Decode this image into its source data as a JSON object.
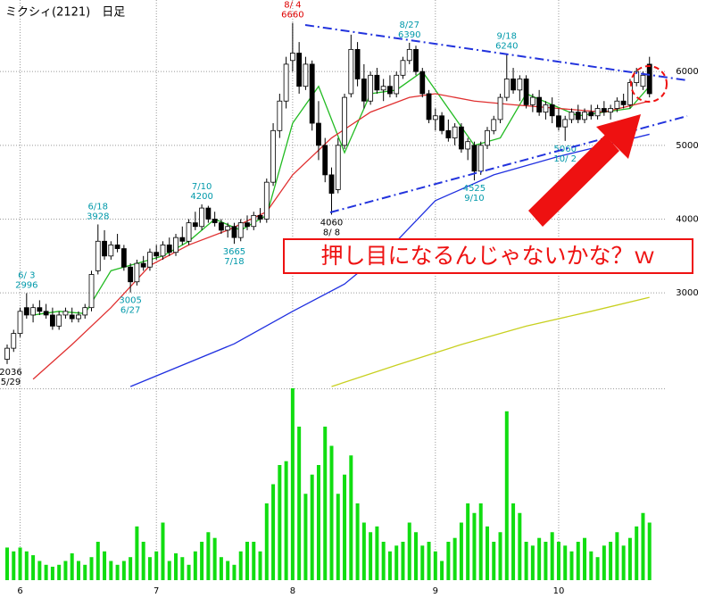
{
  "chart_data": {
    "type": "candlestick",
    "title": "ミクシィ(2121)　日足",
    "ylim": [
      1700,
      6970
    ],
    "yticks": [
      6000,
      5000,
      4000,
      3000
    ],
    "grid": true,
    "vlim": [
      0,
      100
    ],
    "xticks": [
      {
        "value": 2,
        "label": "6"
      },
      {
        "value": 23,
        "label": "7"
      },
      {
        "value": 44,
        "label": "8"
      },
      {
        "value": 66,
        "label": "9"
      },
      {
        "value": 85,
        "label": "10"
      }
    ],
    "ohlc": [
      [
        2100,
        2300,
        2036,
        2250
      ],
      [
        2250,
        2500,
        2200,
        2450
      ],
      [
        2450,
        2800,
        2400,
        2750
      ],
      [
        2800,
        2996,
        2650,
        2700
      ],
      [
        2700,
        2850,
        2600,
        2800
      ],
      [
        2800,
        2900,
        2700,
        2750
      ],
      [
        2750,
        2850,
        2650,
        2700
      ],
      [
        2700,
        2800,
        2500,
        2550
      ],
      [
        2550,
        2750,
        2500,
        2700
      ],
      [
        2700,
        2800,
        2650,
        2750
      ],
      [
        2700,
        2800,
        2600,
        2650
      ],
      [
        2650,
        2750,
        2600,
        2700
      ],
      [
        2700,
        2850,
        2650,
        2800
      ],
      [
        2800,
        3300,
        2750,
        3250
      ],
      [
        3300,
        3928,
        3250,
        3700
      ],
      [
        3700,
        3850,
        3450,
        3500
      ],
      [
        3500,
        3700,
        3450,
        3650
      ],
      [
        3650,
        3800,
        3550,
        3600
      ],
      [
        3600,
        3650,
        3300,
        3350
      ],
      [
        3350,
        3400,
        3005,
        3150
      ],
      [
        3150,
        3450,
        3100,
        3400
      ],
      [
        3400,
        3500,
        3300,
        3350
      ],
      [
        3350,
        3600,
        3300,
        3550
      ],
      [
        3550,
        3650,
        3450,
        3500
      ],
      [
        3500,
        3700,
        3450,
        3650
      ],
      [
        3650,
        3750,
        3500,
        3550
      ],
      [
        3550,
        3800,
        3500,
        3750
      ],
      [
        3750,
        3900,
        3650,
        3700
      ],
      [
        3700,
        4000,
        3650,
        3950
      ],
      [
        3950,
        4100,
        3850,
        3900
      ],
      [
        3900,
        4200,
        3850,
        4150
      ],
      [
        4150,
        4180,
        3950,
        4000
      ],
      [
        4000,
        4100,
        3900,
        3950
      ],
      [
        3950,
        4000,
        3800,
        3850
      ],
      [
        3850,
        3950,
        3750,
        3900
      ],
      [
        3900,
        3950,
        3665,
        3750
      ],
      [
        3750,
        4000,
        3700,
        3950
      ],
      [
        3950,
        4050,
        3850,
        3900
      ],
      [
        3900,
        4100,
        3850,
        4050
      ],
      [
        4050,
        4150,
        3950,
        4000
      ],
      [
        4000,
        4550,
        3950,
        4500
      ],
      [
        4500,
        5300,
        4450,
        5200
      ],
      [
        5200,
        5700,
        5100,
        5600
      ],
      [
        5600,
        6200,
        5500,
        6100
      ],
      [
        6150,
        6660,
        6000,
        6250
      ],
      [
        6250,
        6400,
        5700,
        5800
      ],
      [
        5800,
        6200,
        5750,
        6100
      ],
      [
        6100,
        6150,
        5200,
        5300
      ],
      [
        5300,
        5600,
        4800,
        5000
      ],
      [
        5000,
        5100,
        4500,
        4600
      ],
      [
        4600,
        4700,
        4060,
        4350
      ],
      [
        4400,
        5100,
        4350,
        5000
      ],
      [
        5000,
        5700,
        4950,
        5650
      ],
      [
        5700,
        6500,
        5650,
        6300
      ],
      [
        6300,
        6400,
        5800,
        5900
      ],
      [
        5900,
        6100,
        5500,
        5600
      ],
      [
        5600,
        6000,
        5550,
        5950
      ],
      [
        5950,
        6050,
        5700,
        5750
      ],
      [
        5750,
        5900,
        5600,
        5800
      ],
      [
        5800,
        5950,
        5650,
        5700
      ],
      [
        5700,
        6000,
        5650,
        5950
      ],
      [
        5950,
        6200,
        5900,
        6150
      ],
      [
        6150,
        6390,
        6100,
        6300
      ],
      [
        6300,
        6350,
        5950,
        6000
      ],
      [
        6000,
        6050,
        5650,
        5700
      ],
      [
        5700,
        5750,
        5300,
        5350
      ],
      [
        5350,
        5500,
        5200,
        5400
      ],
      [
        5400,
        5450,
        5150,
        5200
      ],
      [
        5200,
        5350,
        5050,
        5100
      ],
      [
        5100,
        5300,
        5000,
        5250
      ],
      [
        5250,
        5300,
        4900,
        4950
      ],
      [
        4950,
        5100,
        4800,
        5050
      ],
      [
        5000,
        5050,
        4525,
        4650
      ],
      [
        4650,
        5050,
        4600,
        5000
      ],
      [
        5000,
        5250,
        4950,
        5200
      ],
      [
        5200,
        5400,
        5150,
        5350
      ],
      [
        5350,
        5700,
        5300,
        5650
      ],
      [
        5650,
        6240,
        5600,
        5900
      ],
      [
        5900,
        6050,
        5700,
        5750
      ],
      [
        5750,
        5950,
        5600,
        5900
      ],
      [
        5900,
        5950,
        5500,
        5550
      ],
      [
        5550,
        5700,
        5450,
        5650
      ],
      [
        5650,
        5750,
        5400,
        5450
      ],
      [
        5450,
        5600,
        5350,
        5550
      ],
      [
        5550,
        5650,
        5300,
        5400
      ],
      [
        5400,
        5500,
        5200,
        5250
      ],
      [
        5250,
        5400,
        5060,
        5350
      ],
      [
        5350,
        5500,
        5300,
        5450
      ],
      [
        5450,
        5550,
        5300,
        5350
      ],
      [
        5350,
        5500,
        5300,
        5450
      ],
      [
        5450,
        5550,
        5350,
        5400
      ],
      [
        5400,
        5550,
        5350,
        5500
      ],
      [
        5500,
        5600,
        5400,
        5450
      ],
      [
        5450,
        5550,
        5350,
        5500
      ],
      [
        5500,
        5650,
        5450,
        5600
      ],
      [
        5600,
        5700,
        5500,
        5550
      ],
      [
        5550,
        5900,
        5500,
        5850
      ],
      [
        5850,
        6050,
        5800,
        6000
      ],
      [
        5800,
        6000,
        5750,
        5950
      ],
      [
        6100,
        6200,
        5650,
        5700
      ]
    ],
    "volume": [
      17,
      15,
      17,
      15,
      13,
      10,
      8,
      7,
      8,
      10,
      14,
      10,
      8,
      12,
      20,
      15,
      10,
      8,
      10,
      12,
      28,
      20,
      12,
      15,
      30,
      10,
      14,
      12,
      8,
      15,
      20,
      25,
      22,
      12,
      10,
      8,
      15,
      20,
      20,
      15,
      40,
      50,
      60,
      62,
      100,
      80,
      45,
      55,
      60,
      80,
      70,
      45,
      55,
      65,
      40,
      30,
      25,
      28,
      20,
      15,
      18,
      20,
      30,
      25,
      18,
      20,
      15,
      10,
      20,
      22,
      30,
      40,
      35,
      40,
      28,
      20,
      25,
      88,
      40,
      35,
      20,
      18,
      22,
      20,
      25,
      20,
      18,
      15,
      20,
      22,
      15,
      12,
      18,
      20,
      25,
      18,
      22,
      28,
      35,
      30
    ],
    "volume_color": "#11dd11",
    "moving_averages": [
      {
        "color": "#22bb22",
        "x": [
          4,
          8,
          12,
          16,
          20,
          24,
          28,
          32,
          36,
          40,
          44,
          48,
          52,
          56,
          60,
          64,
          68,
          72,
          76,
          80,
          84,
          88,
          92,
          96,
          99
        ],
        "values": [
          2700,
          2750,
          2720,
          3300,
          3400,
          3500,
          3700,
          4000,
          3850,
          4050,
          5300,
          5800,
          4900,
          5700,
          5750,
          6000,
          5500,
          5000,
          5100,
          5700,
          5550,
          5400,
          5450,
          5500,
          5800
        ]
      },
      {
        "color": "#e03030",
        "x": [
          4,
          10,
          16,
          22,
          28,
          34,
          40,
          44,
          50,
          56,
          62,
          66,
          72,
          78,
          85,
          92,
          99
        ],
        "values": [
          1830,
          2300,
          2800,
          3370,
          3650,
          3850,
          4100,
          4600,
          5100,
          5450,
          5650,
          5700,
          5600,
          5550,
          5500,
          5450,
          5600
        ]
      },
      {
        "color": "#2030e0",
        "x": [
          19,
          35,
          44,
          52,
          60,
          66,
          75,
          85,
          92,
          99
        ],
        "values": [
          1730,
          2310,
          2750,
          3120,
          3700,
          4250,
          4600,
          4850,
          5000,
          5150
        ]
      },
      {
        "color": "#c8d020",
        "x": [
          50,
          60,
          70,
          80,
          90,
          99
        ],
        "values": [
          1730,
          2020,
          2300,
          2550,
          2750,
          2940
        ]
      }
    ],
    "annotations": [
      {
        "date": "5/29",
        "price": 2036,
        "color": "#000000"
      },
      {
        "date": "6/ 3",
        "price": 2996,
        "color": "#0099aa"
      },
      {
        "date": "6/18",
        "price": 3928,
        "color": "#0099aa"
      },
      {
        "date": "6/27",
        "price": 3005,
        "color": "#0099aa"
      },
      {
        "date": "7/10",
        "price": 4200,
        "color": "#0099aa"
      },
      {
        "date": "7/18",
        "price": 3665,
        "color": "#0099aa"
      },
      {
        "date": "8/ 4",
        "price": 6660,
        "color": "#dd0000"
      },
      {
        "date": "8/ 8",
        "price": 4060,
        "color": "#000000"
      },
      {
        "date": "8/27",
        "price": 6390,
        "color": "#0099aa"
      },
      {
        "date": "9/10",
        "price": 4525,
        "color": "#0099aa"
      },
      {
        "date": "9/18",
        "price": 6240,
        "color": "#0099aa"
      },
      {
        "date": "10/ 2",
        "price": 5060,
        "color": "#0099aa"
      }
    ],
    "callout": "押し目になるんじゃないかな？ｗ"
  }
}
